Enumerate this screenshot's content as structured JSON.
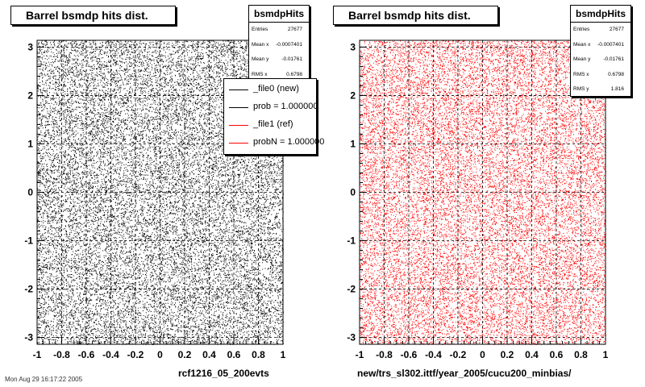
{
  "footer_text": "Mon Aug 29 16:17:22 2005",
  "legend": {
    "entries": [
      {
        "label": "_file0 (new)",
        "color": "#000000"
      },
      {
        "label": "prob = 1.000000",
        "color": "#000000"
      },
      {
        "label": "_file1 (ref)",
        "color": "#ff0000"
      },
      {
        "label": "probN = 1.000000",
        "color": "#ff0000"
      }
    ]
  },
  "panels": [
    {
      "title": "Barrel bsmdp hits dist.",
      "xaxis_title": "rcf1216_05_200evts",
      "stats": {
        "name": "bsmdpHits",
        "rows": [
          {
            "key": "Entries",
            "value": "27677"
          },
          {
            "key": "Mean x",
            "value": "-0.0007401"
          },
          {
            "key": "Mean y",
            "value": "-0.01761"
          },
          {
            "key": "RMS x",
            "value": "0.6798"
          }
        ]
      }
    },
    {
      "title": "Barrel bsmdp hits dist.",
      "xaxis_title": "new/trs_sl302.ittf/year_2005/cucu200_minbias/",
      "stats": {
        "name": "bsmdpHits",
        "rows": [
          {
            "key": "Entries",
            "value": "27677"
          },
          {
            "key": "Mean x",
            "value": "-0.0007401"
          },
          {
            "key": "Mean y",
            "value": "-0.01761"
          },
          {
            "key": "RMS x",
            "value": "0.6798"
          },
          {
            "key": "RMS y",
            "value": "1.816"
          }
        ]
      }
    }
  ],
  "chart_data": [
    {
      "type": "scatter",
      "title": "Barrel bsmdp hits dist.",
      "xlabel": "rcf1216_05_200evts",
      "ylabel": "",
      "xlim": [
        -1,
        1
      ],
      "ylim": [
        -3.14,
        3.14
      ],
      "xticks": [
        "-1",
        "-0.8",
        "-0.6",
        "-0.4",
        "-0.2",
        "0",
        "0.2",
        "0.4",
        "0.6",
        "0.8",
        "1"
      ],
      "yticks": [
        "3",
        "2",
        "1",
        "0",
        "-1",
        "-2",
        "-3"
      ],
      "point_color": "#000000",
      "distribution": "uniform",
      "n_points": 27677,
      "grid": true
    },
    {
      "type": "scatter",
      "title": "Barrel bsmdp hits dist.",
      "xlabel": "new/trs_sl302.ittf/year_2005/cucu200_minbias/",
      "ylabel": "",
      "xlim": [
        -1,
        1
      ],
      "ylim": [
        -3.14,
        3.14
      ],
      "xticks": [
        "-1",
        "-0.8",
        "-0.6",
        "-0.4",
        "-0.2",
        "0",
        "0.2",
        "0.4",
        "0.6",
        "0.8",
        "1"
      ],
      "yticks": [
        "3",
        "2",
        "1",
        "0",
        "-1",
        "-2",
        "-3"
      ],
      "point_color": "#ff0000",
      "distribution": "uniform",
      "n_points": 27677,
      "grid": true
    }
  ]
}
